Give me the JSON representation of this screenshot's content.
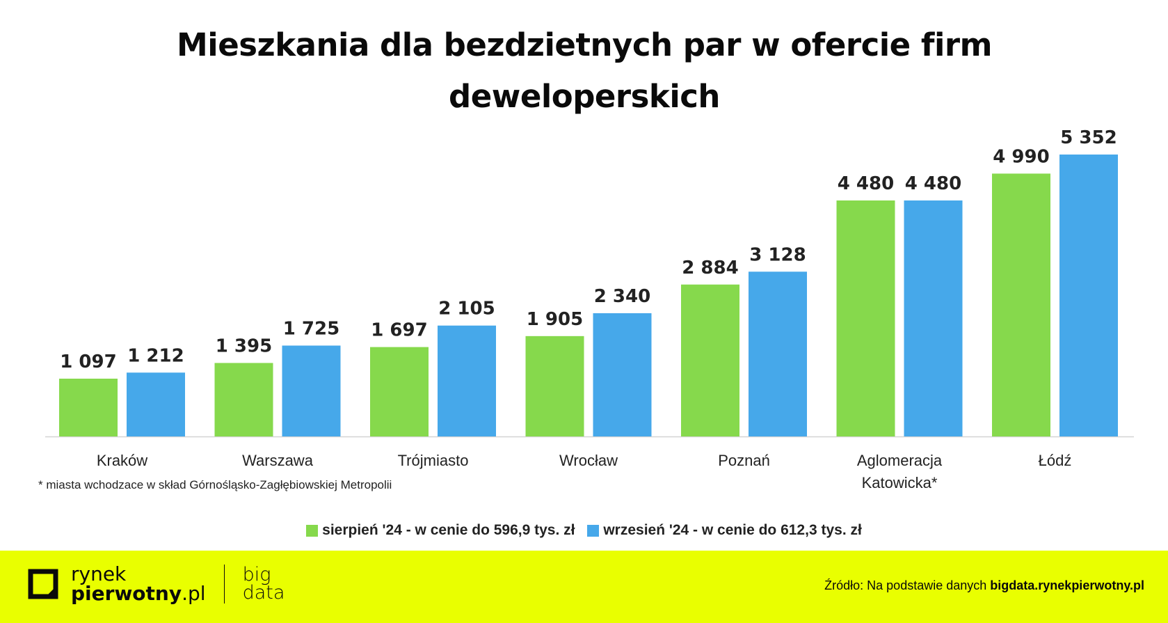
{
  "chart_data": {
    "type": "bar",
    "title": "Mieszkania dla bezdzietnych par w ofercie firm deweloperskich",
    "categories": [
      "Kraków",
      "Warszawa",
      "Trójmiasto",
      "Wrocław",
      "Poznań",
      "Aglomeracja Katowicka*",
      "Łódź"
    ],
    "category_lines": [
      [
        "Kraków"
      ],
      [
        "Warszawa"
      ],
      [
        "Trójmiasto"
      ],
      [
        "Wrocław"
      ],
      [
        "Poznań"
      ],
      [
        "Aglomeracja",
        "Katowicka*"
      ],
      [
        "Łódź"
      ]
    ],
    "series": [
      {
        "name": "sierpień '24 - w cenie do 596,9 tys. zł",
        "color": "#86d94c",
        "values": [
          1097,
          1395,
          1697,
          1905,
          2884,
          4480,
          4990
        ],
        "labels": [
          "1 097",
          "1 395",
          "1 697",
          "1 905",
          "2 884",
          "4 480",
          "4 990"
        ]
      },
      {
        "name": "wrzesień '24 - w cenie do 612,3 tys. zł",
        "color": "#46a8ea",
        "values": [
          1212,
          1725,
          2105,
          2340,
          3128,
          4480,
          5352
        ],
        "labels": [
          "1 212",
          "1 725",
          "2 105",
          "2 340",
          "3 128",
          "4 480",
          "5 352"
        ]
      }
    ],
    "ylim": [
      0,
      5352
    ],
    "grid": false,
    "legend": "bottom"
  },
  "footnote": "* miasta wchodzace w skład Górnośląsko-Zagłębiowskiej Metropolii",
  "footer": {
    "logo_line1": "rynek",
    "logo_line2_bold": "pierwotny",
    "logo_line2_suffix": ".pl",
    "bigdata_line1": "big",
    "bigdata_line2": "data",
    "source_prefix": "Źródło: Na podstawie danych ",
    "source_bold": "bigdata.rynekpierwotny.pl",
    "accent": "#e9ff00"
  }
}
